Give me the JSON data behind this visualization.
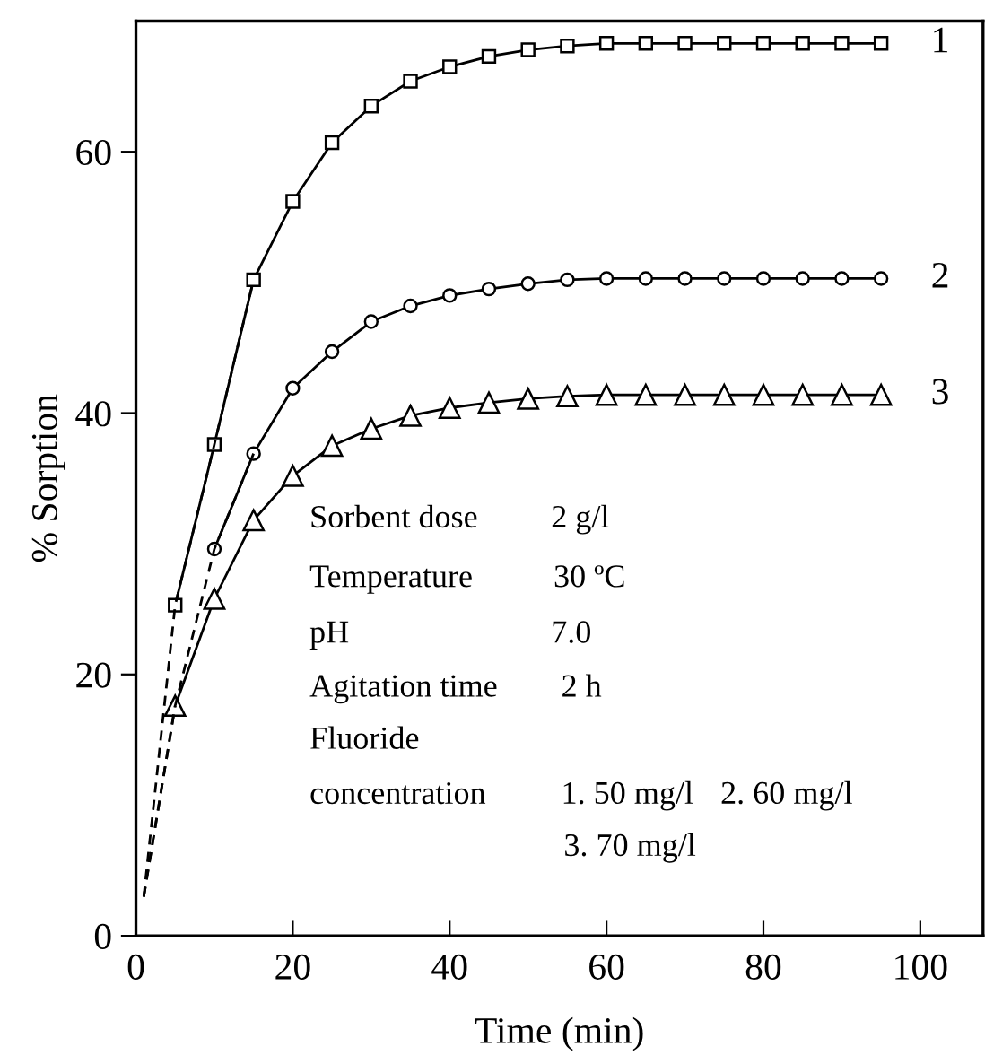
{
  "chart_data": {
    "type": "line",
    "xlabel": "Time (min)",
    "ylabel": "% Sorption",
    "xlim": [
      0,
      108
    ],
    "ylim": [
      0,
      70
    ],
    "xticks": [
      0,
      20,
      40,
      60,
      80,
      100
    ],
    "yticks": [
      0,
      20,
      40,
      60
    ],
    "grid": false,
    "legend": false,
    "series": [
      {
        "name": "1",
        "color": "#000000",
        "marker": "square",
        "line_style": "solid",
        "x": [
          5,
          10,
          15,
          20,
          25,
          30,
          35,
          40,
          45,
          50,
          55,
          60,
          65,
          70,
          75,
          80,
          85,
          90,
          95
        ],
        "values": [
          25.3,
          37.6,
          50.2,
          56.2,
          60.7,
          63.5,
          65.4,
          66.5,
          67.3,
          67.8,
          68.1,
          68.3,
          68.3,
          68.3,
          68.3,
          68.3,
          68.3,
          68.3,
          68.3
        ]
      },
      {
        "name": "2",
        "color": "#000000",
        "marker": "circle",
        "line_style": "solid",
        "x": [
          10,
          15,
          20,
          25,
          30,
          35,
          40,
          45,
          50,
          55,
          60,
          65,
          70,
          75,
          80,
          85,
          90,
          95
        ],
        "values": [
          29.6,
          36.9,
          41.9,
          44.7,
          47.0,
          48.2,
          49.0,
          49.5,
          49.9,
          50.2,
          50.3,
          50.3,
          50.3,
          50.3,
          50.3,
          50.3,
          50.3,
          50.3
        ]
      },
      {
        "name": "3",
        "color": "#000000",
        "marker": "triangle",
        "line_style": "solid",
        "x": [
          5,
          10,
          15,
          20,
          25,
          30,
          35,
          40,
          45,
          50,
          55,
          60,
          65,
          70,
          75,
          80,
          85,
          90,
          95
        ],
        "values": [
          17.6,
          25.8,
          31.8,
          35.2,
          37.5,
          38.8,
          39.8,
          40.4,
          40.8,
          41.1,
          41.3,
          41.4,
          41.4,
          41.4,
          41.4,
          41.4,
          41.4,
          41.4,
          41.4
        ]
      },
      {
        "color": "#000000",
        "marker": "none",
        "line_style": "dashed",
        "x": [
          1,
          5,
          10,
          15
        ],
        "values": [
          3,
          25.3,
          37.6,
          50.2
        ]
      },
      {
        "color": "#000000",
        "marker": "none",
        "line_style": "dashed",
        "x": [
          1,
          5,
          10,
          15
        ],
        "values": [
          3,
          17.6,
          29.6,
          36.9
        ]
      },
      {
        "color": "#000000",
        "marker": "none",
        "line_style": "dashed",
        "x": [
          1,
          5
        ],
        "values": [
          3,
          17.6
        ]
      }
    ],
    "annotations": [
      "Sorbent dose",
      "2 g/l",
      "Temperature",
      "30 ºC",
      "pH",
      "7.0",
      "Agitation time",
      "2 h",
      "Fluoride",
      "concentration",
      "1. 50 mg/l",
      "2. 60 mg/l",
      "3. 70 mg/l"
    ]
  }
}
